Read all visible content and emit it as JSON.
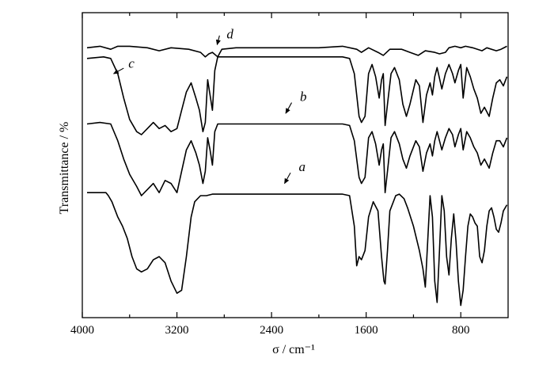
{
  "chart_data": {
    "type": "line",
    "xlabel": "σ / cm⁻¹",
    "ylabel": "Transmittance / %",
    "xlim": [
      4000,
      400
    ],
    "x_reversed": true,
    "x_ticks": [
      4000,
      3200,
      2400,
      1600,
      800
    ],
    "x_tick_labels": [
      "4000",
      "3200",
      "2400",
      "1600",
      "800"
    ],
    "x_minor_ticks": [
      3600,
      2800,
      2000,
      1200
    ],
    "y_ticks_shown": false,
    "grid": false,
    "legend": "none",
    "ylim": [
      0,
      100
    ],
    "series": [
      {
        "name": "d",
        "points": [
          [
            3960,
            88.5
          ],
          [
            3850,
            89
          ],
          [
            3760,
            88
          ],
          [
            3700,
            89
          ],
          [
            3600,
            89
          ],
          [
            3450,
            88.5
          ],
          [
            3350,
            87.5
          ],
          [
            3250,
            88.5
          ],
          [
            3100,
            88
          ],
          [
            3000,
            87
          ],
          [
            2960,
            85.5
          ],
          [
            2930,
            86.5
          ],
          [
            2900,
            87
          ],
          [
            2855,
            85.5
          ],
          [
            2820,
            88
          ],
          [
            2700,
            88.5
          ],
          [
            2400,
            88.5
          ],
          [
            2000,
            88.5
          ],
          [
            1800,
            89
          ],
          [
            1680,
            88
          ],
          [
            1640,
            87
          ],
          [
            1580,
            88.5
          ],
          [
            1500,
            87
          ],
          [
            1455,
            86
          ],
          [
            1400,
            88
          ],
          [
            1300,
            88
          ],
          [
            1230,
            87
          ],
          [
            1160,
            86
          ],
          [
            1100,
            87.5
          ],
          [
            1020,
            87
          ],
          [
            980,
            86.5
          ],
          [
            930,
            87
          ],
          [
            900,
            88.5
          ],
          [
            850,
            89
          ],
          [
            800,
            88.5
          ],
          [
            760,
            89
          ],
          [
            700,
            88.5
          ],
          [
            620,
            87.5
          ],
          [
            580,
            88.5
          ],
          [
            500,
            87.5
          ],
          [
            460,
            88
          ],
          [
            410,
            89
          ]
        ]
      },
      {
        "name": "c",
        "points": [
          [
            3960,
            85
          ],
          [
            3820,
            85.5
          ],
          [
            3760,
            85
          ],
          [
            3700,
            80
          ],
          [
            3650,
            72
          ],
          [
            3600,
            65
          ],
          [
            3540,
            61
          ],
          [
            3500,
            60
          ],
          [
            3450,
            62
          ],
          [
            3400,
            64
          ],
          [
            3350,
            62
          ],
          [
            3300,
            63
          ],
          [
            3250,
            61
          ],
          [
            3200,
            62
          ],
          [
            3160,
            68
          ],
          [
            3120,
            74
          ],
          [
            3080,
            77
          ],
          [
            3040,
            72
          ],
          [
            3010,
            68
          ],
          [
            2980,
            61
          ],
          [
            2960,
            64
          ],
          [
            2940,
            78
          ],
          [
            2920,
            73
          ],
          [
            2900,
            68
          ],
          [
            2880,
            81
          ],
          [
            2855,
            85.5
          ],
          [
            2700,
            85.5
          ],
          [
            2400,
            85.5
          ],
          [
            2000,
            85.5
          ],
          [
            1800,
            85.5
          ],
          [
            1740,
            85
          ],
          [
            1700,
            80
          ],
          [
            1660,
            66
          ],
          [
            1640,
            64
          ],
          [
            1610,
            66
          ],
          [
            1580,
            80
          ],
          [
            1550,
            83
          ],
          [
            1520,
            79
          ],
          [
            1490,
            72
          ],
          [
            1470,
            78
          ],
          [
            1455,
            80
          ],
          [
            1440,
            63
          ],
          [
            1420,
            70
          ],
          [
            1390,
            80
          ],
          [
            1360,
            82
          ],
          [
            1320,
            78
          ],
          [
            1290,
            70
          ],
          [
            1260,
            66
          ],
          [
            1230,
            70
          ],
          [
            1180,
            78
          ],
          [
            1150,
            76
          ],
          [
            1120,
            64
          ],
          [
            1090,
            73
          ],
          [
            1060,
            77
          ],
          [
            1040,
            73
          ],
          [
            1020,
            79
          ],
          [
            1000,
            82
          ],
          [
            960,
            75
          ],
          [
            930,
            80
          ],
          [
            900,
            83
          ],
          [
            870,
            80
          ],
          [
            850,
            77
          ],
          [
            820,
            81
          ],
          [
            800,
            83
          ],
          [
            780,
            72
          ],
          [
            750,
            82
          ],
          [
            720,
            79
          ],
          [
            690,
            75
          ],
          [
            660,
            72
          ],
          [
            630,
            67
          ],
          [
            600,
            69
          ],
          [
            560,
            66
          ],
          [
            530,
            72
          ],
          [
            500,
            77
          ],
          [
            470,
            78
          ],
          [
            440,
            76
          ],
          [
            410,
            79
          ]
        ]
      },
      {
        "name": "b",
        "points": [
          [
            3960,
            63.5
          ],
          [
            3850,
            64
          ],
          [
            3760,
            63.5
          ],
          [
            3700,
            58
          ],
          [
            3650,
            52
          ],
          [
            3600,
            47
          ],
          [
            3540,
            43
          ],
          [
            3500,
            40
          ],
          [
            3450,
            42
          ],
          [
            3400,
            44
          ],
          [
            3350,
            41
          ],
          [
            3300,
            45
          ],
          [
            3250,
            44
          ],
          [
            3200,
            41
          ],
          [
            3160,
            48
          ],
          [
            3120,
            55
          ],
          [
            3080,
            58
          ],
          [
            3040,
            54
          ],
          [
            3010,
            50
          ],
          [
            2980,
            44
          ],
          [
            2960,
            48
          ],
          [
            2940,
            59
          ],
          [
            2920,
            55
          ],
          [
            2900,
            50
          ],
          [
            2880,
            61
          ],
          [
            2855,
            63.5
          ],
          [
            2700,
            63.5
          ],
          [
            2400,
            63.5
          ],
          [
            2000,
            63.5
          ],
          [
            1800,
            63.5
          ],
          [
            1740,
            63
          ],
          [
            1700,
            58
          ],
          [
            1660,
            46
          ],
          [
            1640,
            44
          ],
          [
            1610,
            46
          ],
          [
            1580,
            59
          ],
          [
            1550,
            61
          ],
          [
            1520,
            57
          ],
          [
            1490,
            50
          ],
          [
            1470,
            55
          ],
          [
            1455,
            57
          ],
          [
            1440,
            41
          ],
          [
            1420,
            48
          ],
          [
            1390,
            59
          ],
          [
            1360,
            61
          ],
          [
            1320,
            57
          ],
          [
            1290,
            52
          ],
          [
            1260,
            49
          ],
          [
            1230,
            53
          ],
          [
            1180,
            58
          ],
          [
            1150,
            56
          ],
          [
            1120,
            48
          ],
          [
            1090,
            54
          ],
          [
            1060,
            57
          ],
          [
            1040,
            53
          ],
          [
            1020,
            58
          ],
          [
            1000,
            61
          ],
          [
            960,
            55
          ],
          [
            930,
            59
          ],
          [
            900,
            62
          ],
          [
            870,
            60
          ],
          [
            850,
            56
          ],
          [
            820,
            60
          ],
          [
            800,
            62
          ],
          [
            780,
            55
          ],
          [
            750,
            61
          ],
          [
            720,
            59
          ],
          [
            690,
            56
          ],
          [
            660,
            54
          ],
          [
            630,
            50
          ],
          [
            600,
            52
          ],
          [
            560,
            49
          ],
          [
            530,
            54
          ],
          [
            500,
            58
          ],
          [
            470,
            58
          ],
          [
            440,
            56
          ],
          [
            410,
            59
          ]
        ]
      },
      {
        "name": "a",
        "points": [
          [
            3960,
            41
          ],
          [
            3800,
            41
          ],
          [
            3780,
            40
          ],
          [
            3750,
            38
          ],
          [
            3700,
            33
          ],
          [
            3660,
            30
          ],
          [
            3620,
            26
          ],
          [
            3580,
            20
          ],
          [
            3540,
            16
          ],
          [
            3500,
            15
          ],
          [
            3450,
            16
          ],
          [
            3400,
            19
          ],
          [
            3350,
            20
          ],
          [
            3300,
            18
          ],
          [
            3250,
            12
          ],
          [
            3200,
            8
          ],
          [
            3160,
            9
          ],
          [
            3120,
            20
          ],
          [
            3080,
            33
          ],
          [
            3050,
            38
          ],
          [
            3000,
            40
          ],
          [
            2950,
            40
          ],
          [
            2900,
            40.5
          ],
          [
            2700,
            40.5
          ],
          [
            2400,
            40.5
          ],
          [
            2000,
            40.5
          ],
          [
            1800,
            40.5
          ],
          [
            1740,
            40
          ],
          [
            1700,
            30
          ],
          [
            1680,
            17
          ],
          [
            1660,
            20
          ],
          [
            1640,
            19
          ],
          [
            1610,
            22
          ],
          [
            1580,
            33
          ],
          [
            1540,
            38
          ],
          [
            1500,
            35
          ],
          [
            1470,
            20
          ],
          [
            1450,
            12
          ],
          [
            1440,
            11
          ],
          [
            1420,
            22
          ],
          [
            1400,
            35
          ],
          [
            1350,
            40
          ],
          [
            1320,
            40.5
          ],
          [
            1280,
            39
          ],
          [
            1250,
            36
          ],
          [
            1200,
            30
          ],
          [
            1150,
            22
          ],
          [
            1120,
            16
          ],
          [
            1100,
            10
          ],
          [
            1080,
            25
          ],
          [
            1060,
            40
          ],
          [
            1040,
            33
          ],
          [
            1020,
            12
          ],
          [
            1000,
            5
          ],
          [
            980,
            22
          ],
          [
            960,
            40
          ],
          [
            940,
            35
          ],
          [
            920,
            20
          ],
          [
            900,
            14
          ],
          [
            880,
            26
          ],
          [
            860,
            34
          ],
          [
            840,
            25
          ],
          [
            820,
            12
          ],
          [
            800,
            4
          ],
          [
            780,
            9
          ],
          [
            760,
            20
          ],
          [
            740,
            30
          ],
          [
            720,
            34
          ],
          [
            700,
            33
          ],
          [
            680,
            31
          ],
          [
            660,
            30
          ],
          [
            640,
            20
          ],
          [
            620,
            18
          ],
          [
            600,
            22
          ],
          [
            580,
            30
          ],
          [
            560,
            35
          ],
          [
            540,
            36
          ],
          [
            520,
            33
          ],
          [
            500,
            29
          ],
          [
            480,
            28
          ],
          [
            460,
            31
          ],
          [
            440,
            35
          ],
          [
            410,
            37
          ]
        ]
      }
    ],
    "annotations": [
      {
        "label": "d",
        "x": 2780,
        "y": 91.5,
        "arrow_from": [
          2840,
          92.5
        ],
        "arrow_to": [
          2860,
          89.5
        ]
      },
      {
        "label": "c",
        "x": 3610,
        "y": 82,
        "arrow_from": [
          3650,
          81.8
        ],
        "arrow_to": [
          3735,
          80
        ]
      },
      {
        "label": "b",
        "x": 2160,
        "y": 71,
        "arrow_from": [
          2230,
          70.5
        ],
        "arrow_to": [
          2280,
          67
        ]
      },
      {
        "label": "a",
        "x": 2170,
        "y": 48,
        "arrow_from": [
          2240,
          47.5
        ],
        "arrow_to": [
          2290,
          44
        ]
      }
    ]
  }
}
